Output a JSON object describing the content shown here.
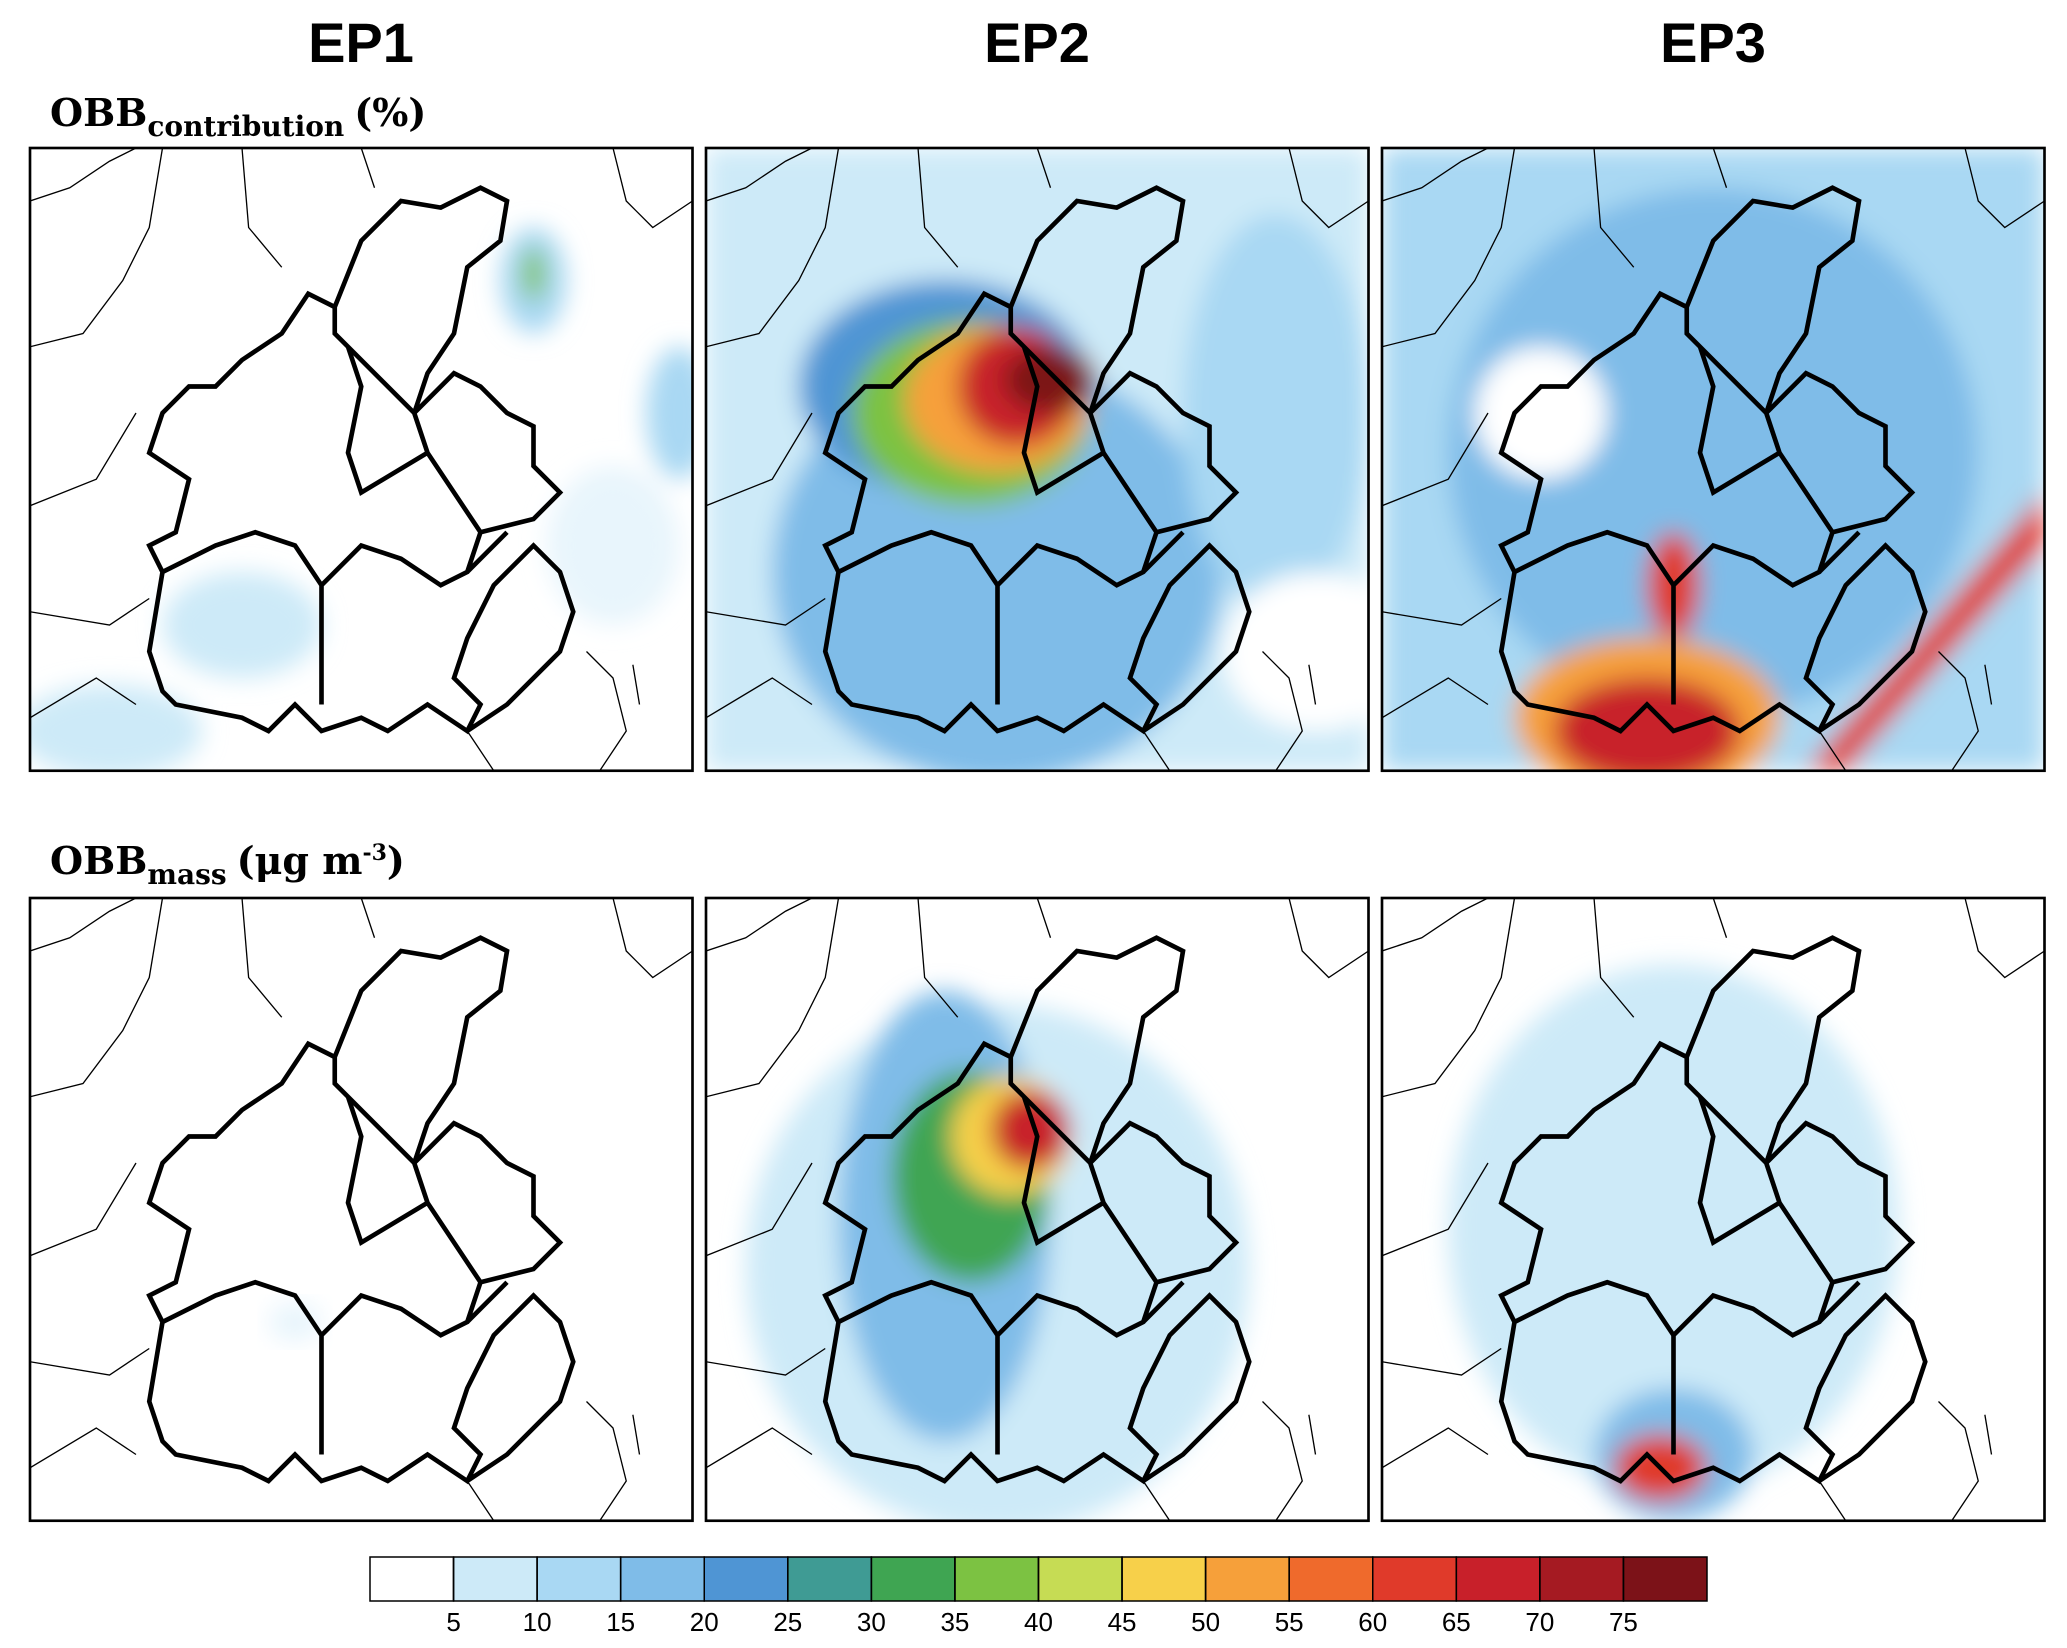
{
  "columns": [
    "EP1",
    "EP2",
    "EP3"
  ],
  "rows": [
    {
      "main": "OBB",
      "sub": "contribution",
      "unit": "(%)"
    },
    {
      "main": "OBB",
      "sub": "mass",
      "unit": "(μg m",
      "sup": "-3",
      "close": ")"
    }
  ],
  "colorbar": {
    "levels": [
      5,
      10,
      15,
      20,
      25,
      30,
      35,
      40,
      45,
      50,
      55,
      60,
      65,
      70,
      75
    ],
    "colors": [
      "#ffffff",
      "#cdeaf8",
      "#a9d8f3",
      "#7fbce8",
      "#4f95d4",
      "#3f9b94",
      "#3fa552",
      "#7cc242",
      "#c6dc54",
      "#f7d04a",
      "#f6a03a",
      "#ef6a2c",
      "#e03a2a",
      "#c8202a",
      "#a51a22",
      "#7c1218"
    ]
  }
}
